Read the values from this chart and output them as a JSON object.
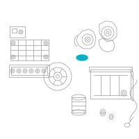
{
  "background_color": "#ffffff",
  "line_color": "#999999",
  "highlight_color": "#00b0c8",
  "figsize": [
    2.0,
    2.0
  ],
  "dpi": 100
}
